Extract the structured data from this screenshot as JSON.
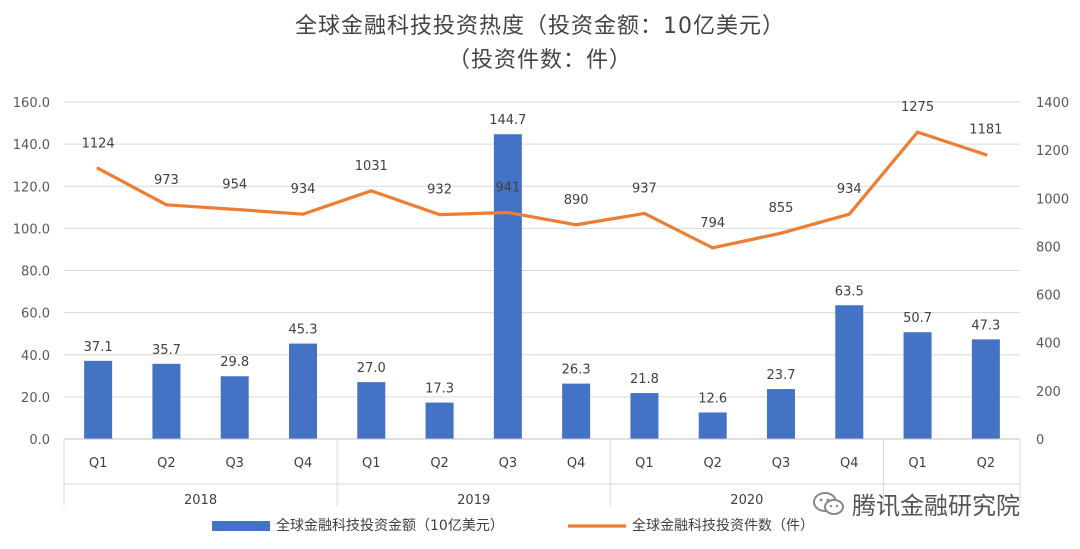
{
  "chart_data": {
    "type": "bar+line",
    "title": "全球金融科技投资热度（投资金额：10亿美元）",
    "subtitle": "（投资件数：件）",
    "groups": [
      {
        "label": "2018",
        "quarters": [
          "Q1",
          "Q2",
          "Q3",
          "Q4"
        ]
      },
      {
        "label": "2019",
        "quarters": [
          "Q1",
          "Q2",
          "Q3",
          "Q4"
        ]
      },
      {
        "label": "2020",
        "quarters": [
          "Q1",
          "Q2",
          "Q3",
          "Q4"
        ]
      },
      {
        "label": "",
        "quarters": [
          "Q1",
          "Q2"
        ]
      }
    ],
    "categories": [
      "Q1",
      "Q2",
      "Q3",
      "Q4",
      "Q1",
      "Q2",
      "Q3",
      "Q4",
      "Q1",
      "Q2",
      "Q3",
      "Q4",
      "Q1",
      "Q2"
    ],
    "bar_labels": [
      "37.1",
      "35.7",
      "29.8",
      "45.3",
      "27.0",
      "17.3",
      "144.7",
      "26.3",
      "21.8",
      "12.6",
      "23.7",
      "63.5",
      "50.7",
      "47.3"
    ],
    "line_labels": [
      "1124",
      "973",
      "954",
      "934",
      "1031",
      "932",
      "941",
      "890",
      "937",
      "794",
      "855",
      "934",
      "1275",
      "1181"
    ],
    "series": [
      {
        "name": "全球金融科技投资金额（10亿美元）",
        "type": "bar",
        "color": "#4472C4",
        "values": [
          37.1,
          35.7,
          29.8,
          45.3,
          27.0,
          17.3,
          144.7,
          26.3,
          21.8,
          12.6,
          23.7,
          63.5,
          50.7,
          47.3
        ]
      },
      {
        "name": "全球金融科技投资件数（件）",
        "type": "line",
        "color": "#ED7D31",
        "values": [
          1124,
          973,
          954,
          934,
          1031,
          932,
          941,
          890,
          937,
          794,
          855,
          934,
          1275,
          1181
        ]
      }
    ],
    "y_left": {
      "ticks": [
        "0.0",
        "20.0",
        "40.0",
        "60.0",
        "80.0",
        "100.0",
        "120.0",
        "140.0",
        "160.0"
      ],
      "range": [
        0,
        160
      ]
    },
    "y_right": {
      "ticks": [
        "0",
        "200",
        "400",
        "600",
        "800",
        "1000",
        "1200",
        "1400"
      ],
      "range": [
        0,
        1400
      ]
    },
    "legend_position": "bottom"
  },
  "watermark": "腾讯金融研究院"
}
